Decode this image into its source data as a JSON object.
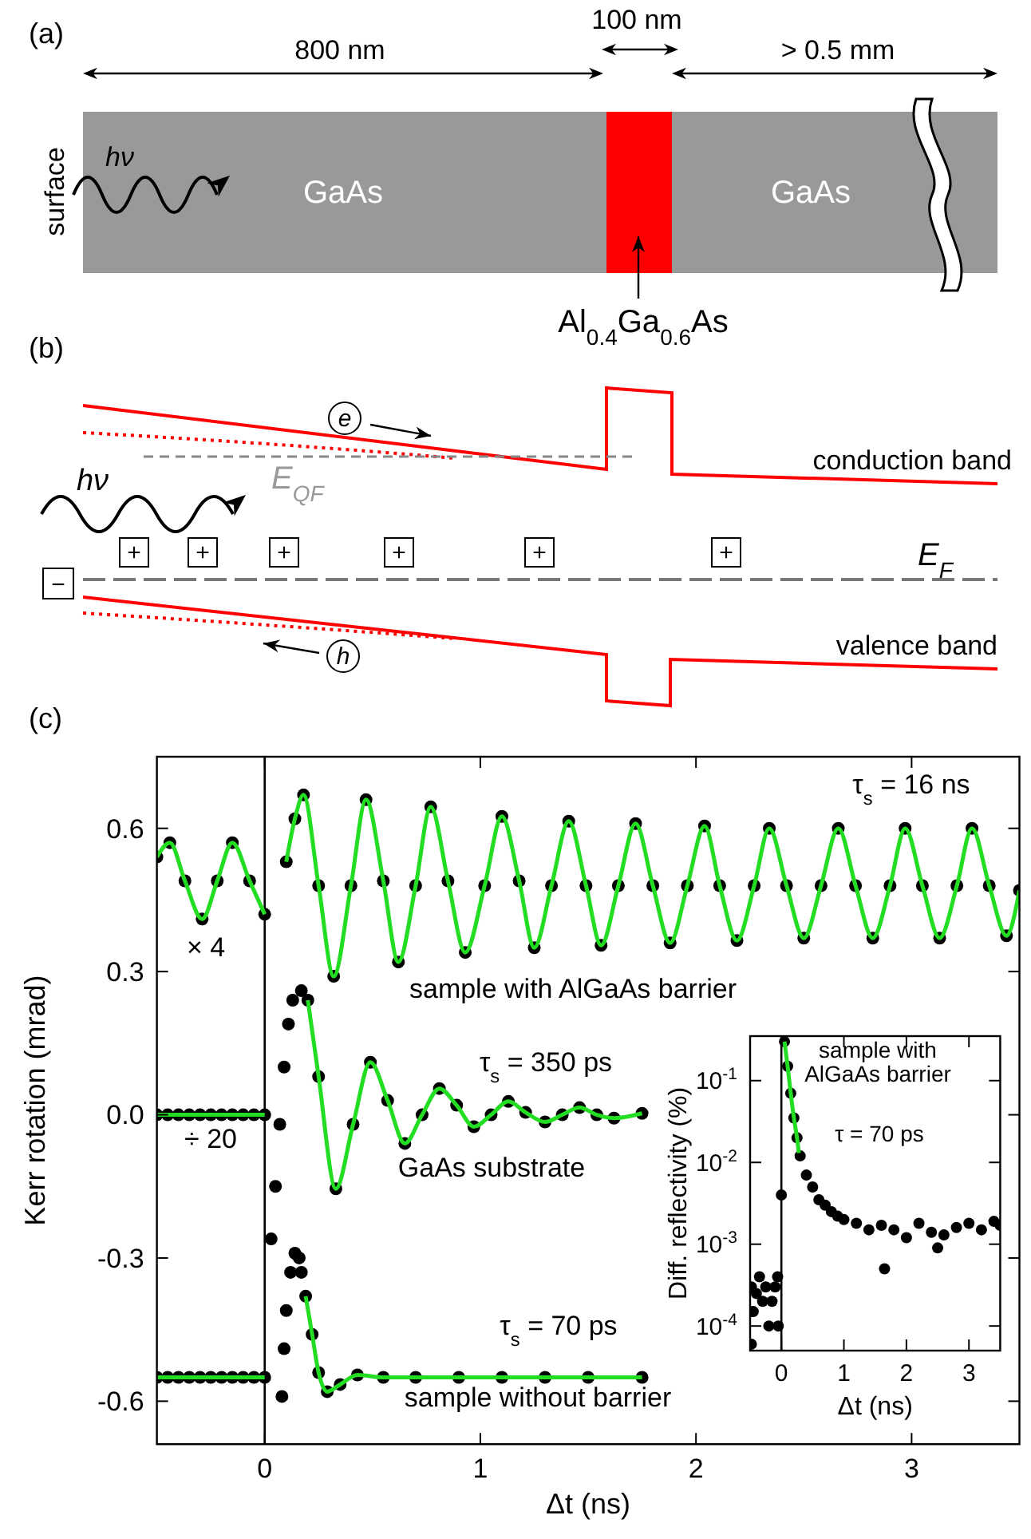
{
  "chart_data": [
    {
      "type": "other",
      "title": "(a)",
      "annotations": [
        "800 nm",
        "100 nm",
        "> 0.5 mm",
        "surface",
        "hν",
        "GaAs",
        "GaAs",
        "Al$_{0.4}$Ga$_{0.6}$As"
      ]
    },
    {
      "type": "other",
      "title": "(b)",
      "annotations": [
        "e",
        "conduction band",
        "hν",
        "E$_{QF}$",
        "+",
        "+",
        "+",
        "+",
        "+",
        "+",
        "−",
        "E$_{F}$",
        "h",
        "valence band"
      ]
    },
    {
      "type": "scatter",
      "title": "(c)",
      "xlabel": "Δt (ns)",
      "ylabel": "Kerr rotation (mrad)",
      "xlim": [
        -0.5,
        3.5
      ],
      "xticks": [
        0,
        1,
        2,
        3
      ],
      "ylim": [
        -0.69,
        0.75
      ],
      "yticks": [
        -0.6,
        -0.3,
        {
          "value": 0,
          "label": "0.0"
        },
        0.3,
        0.6
      ],
      "marker": "circle",
      "ref_lines": [
        {
          "axis": "x",
          "value": 0,
          "color": "#000000"
        }
      ],
      "annotations": [
        "τ$_{s}$ = 16 ns",
        "sample with AlGaAs barrier",
        "× 4",
        "τ$_{s}$ = 350 ps",
        "GaAs substrate",
        "÷ 20",
        "τ$_{s}$ = 70 ps",
        "sample without barrier"
      ],
      "series": [
        {
          "color": "#000000",
          "x": [
            -0.5,
            -0.44,
            -0.37,
            -0.29,
            -0.22,
            -0.15,
            -0.07,
            0,
            0.1,
            0.14,
            0.18,
            0.25,
            0.32,
            0.4,
            0.47,
            0.55,
            0.62,
            0.7,
            0.77,
            0.85,
            0.93,
            1.02,
            1.1,
            1.18,
            1.25,
            1.33,
            1.41,
            1.49,
            1.56,
            1.64,
            1.72,
            1.8,
            1.88,
            1.96,
            2.04,
            2.11,
            2.19,
            2.27,
            2.34,
            2.42,
            2.5,
            2.58,
            2.66,
            2.74,
            2.82,
            2.9,
            2.97,
            3.05,
            3.13,
            3.21,
            3.28,
            3.36,
            3.44,
            3.5
          ],
          "values": [
            0.54,
            0.57,
            0.49,
            0.41,
            0.49,
            0.57,
            0.49,
            0.42,
            0.53,
            0.62,
            0.67,
            0.48,
            0.29,
            0.48,
            0.66,
            0.49,
            0.32,
            0.48,
            0.645,
            0.49,
            0.34,
            0.48,
            0.625,
            0.49,
            0.35,
            0.48,
            0.615,
            0.48,
            0.355,
            0.48,
            0.61,
            0.48,
            0.36,
            0.48,
            0.605,
            0.48,
            0.365,
            0.48,
            0.6,
            0.48,
            0.37,
            0.48,
            0.6,
            0.48,
            0.37,
            0.48,
            0.6,
            0.48,
            0.37,
            0.48,
            0.6,
            0.48,
            0.375,
            0.47
          ]
        },
        {
          "type": "line",
          "marker": "none",
          "color": "#22dd22",
          "x": [
            -0.5,
            -0.44,
            -0.37,
            -0.29,
            -0.22,
            -0.15,
            -0.07,
            0,
            0.05,
            0.1,
            0.14,
            0.18,
            0.25,
            0.32,
            0.4,
            0.47,
            0.55,
            0.62,
            0.7,
            0.77,
            0.85,
            0.93,
            1.02,
            1.1,
            1.18,
            1.25,
            1.33,
            1.41,
            1.49,
            1.56,
            1.64,
            1.72,
            1.8,
            1.88,
            1.96,
            2.04,
            2.11,
            2.19,
            2.27,
            2.34,
            2.42,
            2.5,
            2.58,
            2.66,
            2.74,
            2.82,
            2.9,
            2.97,
            3.05,
            3.13,
            3.21,
            3.28,
            3.36,
            3.44,
            3.5
          ],
          "values": [
            0.54,
            0.57,
            0.49,
            0.41,
            0.49,
            0.57,
            0.49,
            0.42,
            null,
            0.53,
            0.62,
            0.67,
            0.48,
            0.29,
            0.48,
            0.66,
            0.49,
            0.32,
            0.48,
            0.645,
            0.49,
            0.34,
            0.48,
            0.625,
            0.49,
            0.35,
            0.48,
            0.615,
            0.48,
            0.355,
            0.48,
            0.61,
            0.48,
            0.36,
            0.48,
            0.605,
            0.48,
            0.365,
            0.48,
            0.6,
            0.48,
            0.37,
            0.48,
            0.6,
            0.48,
            0.37,
            0.48,
            0.6,
            0.48,
            0.37,
            0.48,
            0.6,
            0.48,
            0.375,
            0.47
          ]
        },
        {
          "color": "#000000",
          "x": [
            -0.5,
            -0.45,
            -0.4,
            -0.35,
            -0.3,
            -0.25,
            -0.2,
            -0.15,
            -0.1,
            -0.05,
            0,
            0.03,
            0.05,
            0.07,
            0.09,
            0.11,
            0.13,
            0.17,
            0.2,
            0.25,
            0.33,
            0.41,
            0.49,
            0.57,
            0.65,
            0.73,
            0.81,
            0.89,
            0.97,
            1.05,
            1.13,
            1.21,
            1.3,
            1.38,
            1.46,
            1.54,
            1.62,
            1.75
          ],
          "values": [
            0,
            0,
            0,
            0,
            0,
            0,
            0,
            0,
            0,
            0,
            0,
            -0.26,
            -0.15,
            -0.02,
            0.1,
            0.19,
            0.24,
            0.26,
            0.24,
            0.08,
            -0.155,
            -0.02,
            0.11,
            0.03,
            -0.06,
            0,
            0.055,
            0.02,
            -0.025,
            0,
            0.028,
            0.005,
            -0.015,
            0,
            0.015,
            0,
            -0.007,
            0.003
          ]
        },
        {
          "type": "line",
          "marker": "none",
          "color": "#22dd22",
          "x": [
            -0.5,
            0,
            0.1,
            0.2,
            0.25,
            0.33,
            0.41,
            0.49,
            0.57,
            0.65,
            0.73,
            0.81,
            0.89,
            0.97,
            1.05,
            1.13,
            1.21,
            1.3,
            1.38,
            1.46,
            1.54,
            1.62,
            1.75
          ],
          "values": [
            0,
            0,
            null,
            0.24,
            0.08,
            -0.155,
            -0.02,
            0.11,
            0.03,
            -0.06,
            0,
            0.055,
            0.02,
            -0.025,
            0,
            0.028,
            0.005,
            -0.015,
            0,
            0.015,
            0,
            -0.007,
            0.003
          ]
        },
        {
          "color": "#000000",
          "x": [
            -0.5,
            -0.45,
            -0.4,
            -0.35,
            -0.3,
            -0.25,
            -0.2,
            -0.15,
            -0.1,
            -0.05,
            0,
            0.08,
            0.09,
            0.1,
            0.12,
            0.14,
            0.16,
            0.17,
            0.19,
            0.22,
            0.25,
            0.29,
            0.35,
            0.43,
            0.55,
            0.7,
            0.9,
            1.1,
            1.3,
            1.5,
            1.75
          ],
          "values": [
            -0.55,
            -0.55,
            -0.55,
            -0.55,
            -0.55,
            -0.55,
            -0.55,
            -0.55,
            -0.55,
            -0.55,
            -0.55,
            -0.59,
            -0.49,
            -0.41,
            -0.33,
            -0.29,
            -0.3,
            -0.33,
            -0.38,
            -0.46,
            -0.54,
            -0.58,
            -0.565,
            -0.545,
            -0.55,
            -0.55,
            -0.55,
            -0.55,
            -0.55,
            -0.55,
            -0.55
          ]
        },
        {
          "type": "line",
          "marker": "none",
          "color": "#22dd22",
          "x": [
            -0.5,
            0,
            0.1,
            0.19,
            0.22,
            0.25,
            0.29,
            0.35,
            0.43,
            0.55,
            0.7,
            0.9,
            1.1,
            1.3,
            1.5,
            1.75
          ],
          "values": [
            -0.55,
            -0.55,
            null,
            -0.38,
            -0.46,
            -0.54,
            -0.58,
            -0.565,
            -0.545,
            -0.55,
            -0.55,
            -0.55,
            -0.55,
            -0.55,
            -0.55,
            -0.55
          ]
        }
      ]
    },
    {
      "type": "scatter",
      "xlabel": "Δt (ns)",
      "ylabel": "Diff. reflectivity (%)",
      "log": "y",
      "xlim": [
        -0.5,
        3.5
      ],
      "xticks": [
        0,
        1,
        2,
        3
      ],
      "ylim": [
        5e-05,
        0.35
      ],
      "yticks": [
        {
          "value": 0.0001,
          "label": "10$^{-4}$"
        },
        {
          "value": 0.001,
          "label": "10$^{-3}$"
        },
        {
          "value": 0.01,
          "label": "10$^{-2}$"
        },
        {
          "value": 0.1,
          "label": "10$^{-1}$"
        }
      ],
      "marker": "circle",
      "ref_lines": [
        {
          "axis": "x",
          "value": 0,
          "color": "#000000"
        }
      ],
      "annotations": [
        "sample with AlGaAs barrier",
        "τ = 70 ps"
      ],
      "series": [
        {
          "color": "#000000",
          "x": [
            -0.48,
            -0.48,
            -0.45,
            -0.4,
            -0.35,
            -0.3,
            -0.25,
            -0.2,
            -0.15,
            -0.1,
            -0.06,
            -0.05,
            0,
            0.05,
            0.1,
            0.15,
            0.2,
            0.25,
            0.3,
            0.4,
            0.5,
            0.6,
            0.7,
            0.8,
            0.9,
            1,
            1.2,
            1.4,
            1.6,
            1.65,
            1.8,
            2,
            2.2,
            2.4,
            2.5,
            2.6,
            2.8,
            3,
            3.2,
            3.4,
            3.5
          ],
          "values": [
            0.0003,
            6e-05,
            0.00015,
            0.00025,
            0.0004,
            0.0002,
            0.0003,
            0.0001,
            0.0002,
            0.0003,
            0.0004,
            0.0001,
            0.004,
            0.3,
            0.15,
            0.07,
            0.035,
            0.02,
            0.012,
            0.007,
            0.005,
            0.0035,
            0.003,
            0.0025,
            0.0022,
            0.002,
            0.0018,
            0.0015,
            0.0017,
            0.0005,
            0.0015,
            0.0012,
            0.0018,
            0.0014,
            0.0009,
            0.0013,
            0.0016,
            0.0018,
            0.0015,
            0.0019,
            0.0017
          ]
        },
        {
          "type": "line",
          "marker": "none",
          "color": "#22dd22",
          "x": [
            0.05,
            0.1,
            0.15,
            0.2,
            0.25,
            0.28
          ],
          "values": [
            0.3,
            0.15,
            0.07,
            0.035,
            0.02,
            0.013
          ]
        }
      ]
    }
  ]
}
